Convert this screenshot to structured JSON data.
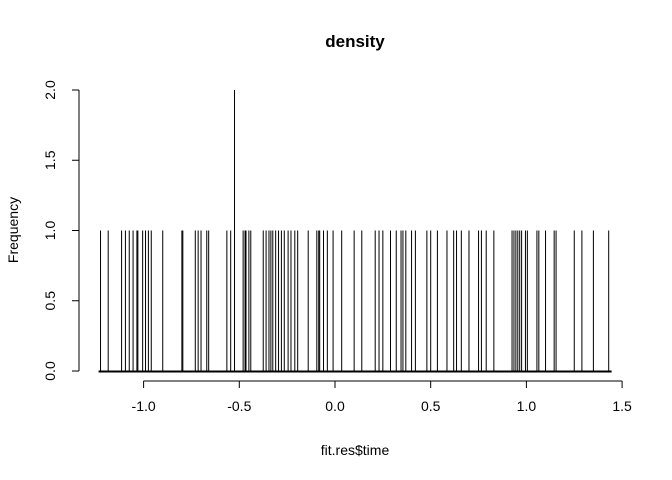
{
  "chart_data": {
    "type": "bar",
    "title": "density",
    "xlabel": "fit.res$time",
    "ylabel": "Frequency",
    "xlim": [
      -1.23,
      1.44
    ],
    "ylim": [
      0,
      2
    ],
    "xticks": [
      -1.0,
      -0.5,
      0.0,
      0.5,
      1.0,
      1.5
    ],
    "xtick_labels": [
      "-1.0",
      "-0.5",
      "0.0",
      "0.5",
      "1.0",
      "1.5"
    ],
    "yticks": [
      0,
      0.5,
      1,
      1.5,
      2
    ],
    "ytick_labels": [
      "0.0",
      "0.5",
      "1.0",
      "1.5",
      "2.0"
    ],
    "grid": false,
    "legend": "none",
    "bar_color": "#000000",
    "x": [
      -1.225,
      -1.185,
      -1.115,
      -1.095,
      -1.075,
      -1.055,
      -1.035,
      -1.03,
      -1.005,
      -0.99,
      -0.975,
      -0.96,
      -0.9,
      -0.8,
      -0.795,
      -0.73,
      -0.715,
      -0.7,
      -0.67,
      -0.66,
      -0.565,
      -0.545,
      -0.525,
      -0.48,
      -0.47,
      -0.465,
      -0.45,
      -0.44,
      -0.375,
      -0.36,
      -0.345,
      -0.335,
      -0.325,
      -0.31,
      -0.295,
      -0.28,
      -0.265,
      -0.245,
      -0.23,
      -0.21,
      -0.195,
      -0.14,
      -0.095,
      -0.085,
      -0.08,
      -0.06,
      -0.04,
      -0.01,
      0.035,
      0.1,
      0.14,
      0.21,
      0.23,
      0.25,
      0.29,
      0.32,
      0.345,
      0.355,
      0.37,
      0.4,
      0.42,
      0.48,
      0.5,
      0.535,
      0.585,
      0.62,
      0.635,
      0.66,
      0.7,
      0.75,
      0.765,
      0.79,
      0.83,
      0.925,
      0.935,
      0.945,
      0.955,
      0.965,
      0.975,
      0.995,
      1.005,
      1.055,
      1.065,
      1.1,
      1.145,
      1.155,
      1.25,
      1.29,
      1.35,
      1.43
    ],
    "values": [
      1,
      1,
      1,
      1,
      1,
      1,
      1,
      1,
      1,
      1,
      1,
      1,
      1,
      1,
      1,
      1,
      1,
      1,
      1,
      1,
      1,
      1,
      2,
      1,
      1,
      1,
      1,
      1,
      1,
      1,
      1,
      1,
      1,
      1,
      1,
      1,
      1,
      1,
      1,
      1,
      1,
      1,
      1,
      1,
      1,
      1,
      1,
      1,
      1,
      1,
      1,
      1,
      1,
      1,
      1,
      1,
      1,
      1,
      1,
      1,
      1,
      1,
      1,
      1,
      1,
      1,
      1,
      1,
      1,
      1,
      1,
      1,
      1,
      1,
      1,
      1,
      1,
      1,
      1,
      1,
      1,
      1,
      1,
      1,
      1,
      1,
      1,
      1,
      1,
      1
    ]
  }
}
